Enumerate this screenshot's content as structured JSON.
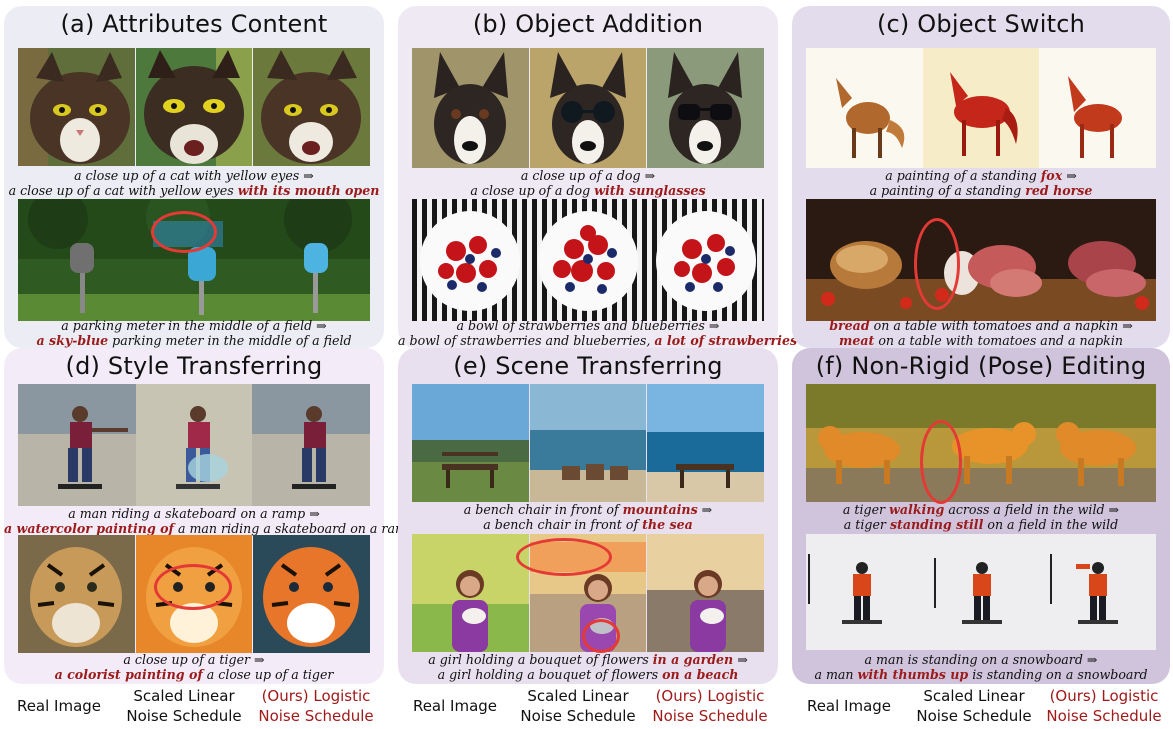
{
  "panels": {
    "a": {
      "title": "(a) Attributes Content",
      "cap1": {
        "l1": "a close up of a cat with yellow eyes ⇒",
        "l2_pre": "a close up of a cat with yellow eyes ",
        "l2_hl": "with its mouth open",
        "l2_post": ""
      },
      "cap2": {
        "l1": "a parking meter in the middle of a field ⇒",
        "l2_pre": "",
        "l2_hl": "a sky-blue",
        "l2_post": " parking meter in the middle of a field"
      }
    },
    "b": {
      "title": "(b) Object Addition",
      "cap1": {
        "l1": "a close up of a dog ⇒",
        "l2_pre": "a close up of a dog ",
        "l2_hl": "with sunglasses",
        "l2_post": ""
      },
      "cap2": {
        "l1": "a bowl of strawberries and blueberries ⇒",
        "l2_pre": "a bowl of strawberries and blueberries, ",
        "l2_hl": "a lot of strawberries",
        "l2_post": ""
      }
    },
    "c": {
      "title": "(c) Object Switch",
      "cap1": {
        "l1_pre": "a painting of a standing ",
        "l1_hl": "fox",
        "l1_post": " ⇒",
        "l2_pre": "a painting of a standing ",
        "l2_hl": "red horse",
        "l2_post": ""
      },
      "cap2": {
        "l1_hl": "bread",
        "l1_post": " on a table with tomatoes and a napkin ⇒",
        "l2_hl": "meat",
        "l2_post": " on a table with tomatoes and a napkin"
      }
    },
    "d": {
      "title": "(d) Style Transferring",
      "cap1": {
        "l1": "a man riding a skateboard on a ramp ⇒",
        "l2_hl": "a watercolor painting of",
        "l2_post": " a man riding a skateboard on a ramp"
      },
      "cap2": {
        "l1": "a close up of a tiger ⇒",
        "l2_hl": "a colorist painting of",
        "l2_post": " a close up of a tiger"
      }
    },
    "e": {
      "title": "(e) Scene Transferring",
      "cap1": {
        "l1_pre": "a bench chair in front of ",
        "l1_hl": "mountains",
        "l1_post": " ⇒",
        "l2_pre": "a bench chair in front of ",
        "l2_hl": "the sea",
        "l2_post": ""
      },
      "cap2": {
        "l1_pre": "a girl holding a bouquet of flowers ",
        "l1_hl": "in a garden",
        "l1_post": " ⇒",
        "l2_pre": "a girl holding a bouquet of flowers ",
        "l2_hl": "on a beach",
        "l2_post": ""
      }
    },
    "f": {
      "title": "(f) Non-Rigid (Pose) Editing",
      "cap1": {
        "l1_pre": "a tiger ",
        "l1_hl": "walking",
        "l1_post": " across a field in the wild ⇒",
        "l2_pre": "a tiger ",
        "l2_hl": "standing still",
        "l2_post": " on a field in the wild"
      },
      "cap2": {
        "l1": "a man is standing on a snowboard ⇒",
        "l2_pre": "a man ",
        "l2_hl": "with thumbs up",
        "l2_post": " is standing on a snowboard"
      }
    }
  },
  "footer": {
    "real": "Real Image",
    "scaled_l1": "Scaled Linear",
    "scaled_l2": "Noise Schedule",
    "ours_l1": "(Ours) Logistic",
    "ours_l2": "Noise Schedule"
  },
  "colors": {
    "highlight": "#9b1b1b",
    "ring": "#e53935",
    "panel_a": "#ececf4",
    "panel_b": "#efe9f3",
    "panel_c": "#e3dcec",
    "panel_d": "#f3ecf8",
    "panel_e": "#e8e0ef",
    "panel_f": "#cfc4dc"
  }
}
